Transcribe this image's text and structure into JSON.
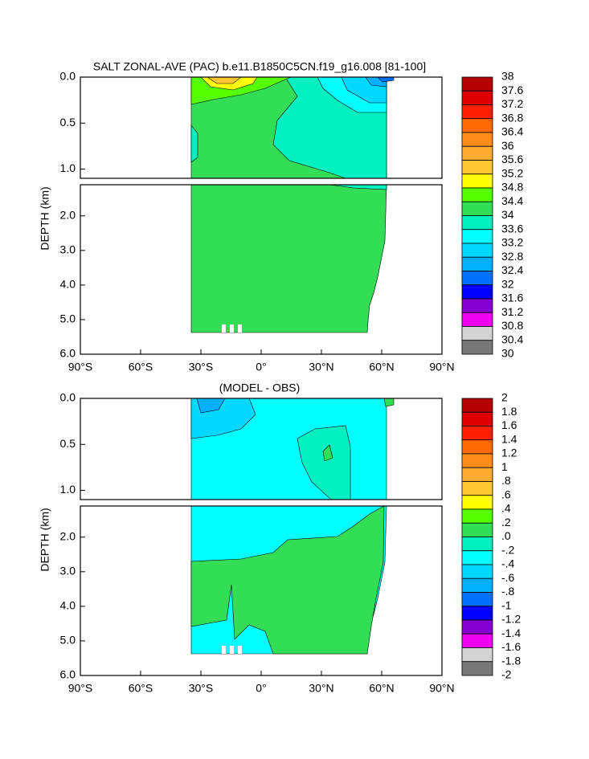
{
  "chart_data": [
    {
      "type": "contour",
      "title": "SALT ZONAL-AVE (PAC) b.e11.B1850C5CN.f19_g16.008 [81-100]",
      "ylabel": "DEPTH (km)",
      "xlim": [
        -90,
        90
      ],
      "xticks": [
        {
          "value": -90,
          "label": "90°S"
        },
        {
          "value": -60,
          "label": "60°S"
        },
        {
          "value": -30,
          "label": "30°S"
        },
        {
          "value": 0,
          "label": "0°"
        },
        {
          "value": 30,
          "label": "30°N"
        },
        {
          "value": 60,
          "label": "60°N"
        },
        {
          "value": 90,
          "label": "90°N"
        }
      ],
      "panels": [
        {
          "ylim": [
            0,
            1.1
          ],
          "yticks": [
            {
              "value": 0,
              "label": "0.0"
            },
            0.5,
            {
              "value": 1,
              "label": "1.0"
            }
          ]
        },
        {
          "ylim": [
            1.1,
            6
          ],
          "yticks": [
            {
              "value": 2,
              "label": "2.0"
            },
            {
              "value": 3,
              "label": "3.0"
            },
            {
              "value": 4,
              "label": "4.0"
            },
            {
              "value": 5,
              "label": "5.0"
            },
            {
              "value": 6,
              "label": "6.0"
            }
          ]
        }
      ],
      "levels": [
        38,
        37.6,
        37.2,
        36.8,
        36.4,
        36,
        35.6,
        35.2,
        34.8,
        34.4,
        34,
        33.6,
        33.2,
        32.8,
        32.4,
        32,
        31.6,
        31.2,
        30.8,
        30.4,
        30
      ],
      "colors": [
        "#b30000",
        "#dd0000",
        "#ff2000",
        "#ff6a00",
        "#ff8c1a",
        "#ffaa33",
        "#ffc832",
        "#ffff00",
        "#55ff00",
        "#33dd55",
        "#00f0c0",
        "#00ffff",
        "#00d8ff",
        "#00b0ff",
        "#0070ff",
        "#0000ff",
        "#8800d0",
        "#ee00ee",
        "#d3d3d3",
        "#777777"
      ]
    },
    {
      "type": "contour",
      "title": "(MODEL - OBS)",
      "ylabel": "DEPTH (km)",
      "xlim": [
        -90,
        90
      ],
      "xticks": [
        {
          "value": -90,
          "label": "90°S"
        },
        {
          "value": -60,
          "label": "60°S"
        },
        {
          "value": -30,
          "label": "30°S"
        },
        {
          "value": 0,
          "label": "0°"
        },
        {
          "value": 30,
          "label": "30°N"
        },
        {
          "value": 60,
          "label": "60°N"
        },
        {
          "value": 90,
          "label": "90°N"
        }
      ],
      "panels": [
        {
          "ylim": [
            0,
            1.1
          ],
          "yticks": [
            {
              "value": 0,
              "label": "0.0"
            },
            0.5,
            {
              "value": 1,
              "label": "1.0"
            }
          ]
        },
        {
          "ylim": [
            1.1,
            6
          ],
          "yticks": [
            {
              "value": 2,
              "label": "2.0"
            },
            {
              "value": 3,
              "label": "3.0"
            },
            {
              "value": 4,
              "label": "4.0"
            },
            {
              "value": 5,
              "label": "5.0"
            },
            {
              "value": 6,
              "label": "6.0"
            }
          ]
        }
      ],
      "levels": [
        2,
        1.8,
        1.6,
        1.4,
        1.2,
        1,
        {
          "value": 0.8,
          "label": ".8"
        },
        {
          "value": 0.6,
          "label": ".6"
        },
        {
          "value": 0.4,
          "label": ".4"
        },
        {
          "value": 0.2,
          "label": ".2"
        },
        {
          "value": 0,
          "label": ".0"
        },
        {
          "value": -0.2,
          "label": "-.2"
        },
        {
          "value": -0.4,
          "label": "-.4"
        },
        {
          "value": -0.6,
          "label": "-.6"
        },
        {
          "value": -0.8,
          "label": "-.8"
        },
        -1,
        -1.2,
        -1.4,
        -1.6,
        -1.8,
        -2
      ],
      "colors": [
        "#b30000",
        "#dd0000",
        "#ff2000",
        "#ff6a00",
        "#ff8c1a",
        "#ffaa33",
        "#ffc832",
        "#ffff00",
        "#55ff00",
        "#33dd55",
        "#00f0c0",
        "#00ffff",
        "#00d8ff",
        "#00b0ff",
        "#0070ff",
        "#0000ff",
        "#8800d0",
        "#ee00ee",
        "#d3d3d3",
        "#777777"
      ]
    }
  ]
}
